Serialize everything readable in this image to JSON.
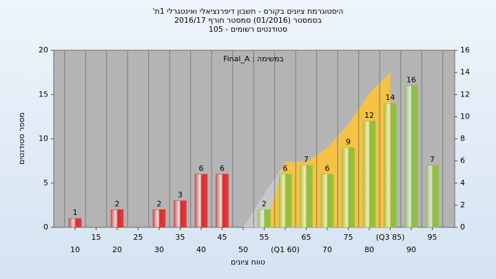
{
  "chart_data": {
    "type": "bar",
    "title": "'היסטוגרמת ציונים בקורס - חשבון דיפרנציאלי ואינטגרלי 1ת",
    "subtitle": "בסמסטר  (01/2016)  סמסטר חורף 2016/17",
    "subtitle2": "סטודנטים רשומים - 105",
    "annotation": "Final_A : במשימה",
    "x_label": "טווח ציונים",
    "y_label": "מספר סטודנטים",
    "categories": [
      "10",
      "15",
      "20",
      "25",
      "30",
      "35",
      "40",
      "45",
      "50",
      "55",
      "(Q1 60)",
      "65",
      "70",
      "75",
      "80",
      "(Q3 85)",
      "90",
      "95"
    ],
    "values": [
      1,
      0,
      2,
      0,
      2,
      3,
      6,
      6,
      0,
      2,
      6,
      7,
      6,
      9,
      12,
      14,
      16,
      7
    ],
    "colors": [
      "#e02a2a",
      "#e02a2a",
      "#e02a2a",
      "#e02a2a",
      "#e02a2a",
      "#e02a2a",
      "#e02a2a",
      "#e02a2a",
      "#e02a2a",
      "#8cbf3c",
      "#8cbf3c",
      "#8cbf3c",
      "#8cbf3c",
      "#8cbf3c",
      "#8cbf3c",
      "#8cbf3c",
      "#8cbf3c",
      "#8cbf3c"
    ],
    "areas": [
      {
        "color": "#c8c8c8",
        "axis": "y2",
        "values": [
          null,
          null,
          null,
          null,
          null,
          null,
          null,
          null,
          0,
          3,
          5.8,
          null,
          null,
          null,
          null,
          null,
          null,
          null
        ]
      },
      {
        "color": "#f5c242",
        "axis": "y2",
        "values": [
          null,
          null,
          null,
          null,
          null,
          null,
          null,
          null,
          null,
          0,
          5.9,
          5.9,
          7.2,
          9.3,
          12.1,
          14,
          null,
          null
        ]
      }
    ],
    "ylim": [
      0,
      20
    ],
    "yticks": [
      0,
      5,
      10,
      15,
      20
    ],
    "y2lim": [
      0,
      16
    ],
    "y2ticks": [
      0,
      2,
      4,
      6,
      8,
      10,
      12,
      14,
      16
    ]
  }
}
